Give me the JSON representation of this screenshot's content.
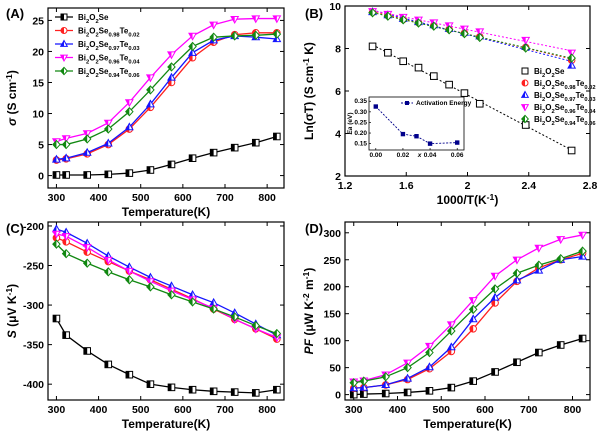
{
  "figure": {
    "colors": {
      "s0": "#000000",
      "s2": "#ff2020",
      "s3": "#1515ff",
      "s4": "#ff00ff",
      "s6": "#118811",
      "inset": "#00008b"
    },
    "legend_labels": [
      {
        "base": "Bi",
        "parts": [
          [
            "Bi",
            "n"
          ],
          [
            "2",
            "sub"
          ],
          [
            "O",
            "n"
          ],
          [
            "2",
            "sub"
          ],
          [
            "Se",
            "n"
          ]
        ]
      },
      {
        "parts": [
          [
            "Bi",
            "n"
          ],
          [
            "2",
            "sub"
          ],
          [
            "O",
            "n"
          ],
          [
            "2",
            "sub"
          ],
          [
            "Se",
            "n"
          ],
          [
            "0.98",
            "sub"
          ],
          [
            "Te",
            "n"
          ],
          [
            "0.02",
            "sub"
          ]
        ]
      },
      {
        "parts": [
          [
            "Bi",
            "n"
          ],
          [
            "2",
            "sub"
          ],
          [
            "O",
            "n"
          ],
          [
            "2",
            "sub"
          ],
          [
            "Se",
            "n"
          ],
          [
            "0.97",
            "sub"
          ],
          [
            "Te",
            "n"
          ],
          [
            "0.03",
            "sub"
          ]
        ]
      },
      {
        "parts": [
          [
            "Bi",
            "n"
          ],
          [
            "2",
            "sub"
          ],
          [
            "O",
            "n"
          ],
          [
            "2",
            "sub"
          ],
          [
            "Se",
            "n"
          ],
          [
            "0.96",
            "sub"
          ],
          [
            "Te",
            "n"
          ],
          [
            "0.04",
            "sub"
          ]
        ]
      },
      {
        "parts": [
          [
            "Bi",
            "n"
          ],
          [
            "2",
            "sub"
          ],
          [
            "O",
            "n"
          ],
          [
            "2",
            "sub"
          ],
          [
            "Se",
            "n"
          ],
          [
            "0.94",
            "sub"
          ],
          [
            "Te",
            "n"
          ],
          [
            "0.06",
            "sub"
          ]
        ]
      }
    ],
    "legend_labels_B": [
      {
        "parts": [
          [
            "Bi",
            "n"
          ],
          [
            "2",
            "sub"
          ],
          [
            "O",
            "n"
          ],
          [
            "2",
            "sub"
          ],
          [
            "Se",
            "n"
          ]
        ]
      },
      {
        "parts": [
          [
            "Bi",
            "n"
          ],
          [
            "2",
            "sub"
          ],
          [
            "O",
            "n"
          ],
          [
            "2",
            "sub"
          ],
          [
            "Se",
            "n"
          ],
          [
            "0.98",
            "sub"
          ],
          [
            "Te",
            "n"
          ],
          [
            "0.02",
            "sub"
          ]
        ]
      },
      {
        "parts": [
          [
            "Bi",
            "n"
          ],
          [
            "2",
            "sub"
          ],
          [
            "O",
            "n"
          ],
          [
            "2",
            "sub"
          ],
          [
            "Se",
            "n"
          ],
          [
            "0.97",
            "sub"
          ],
          [
            "Te",
            "n"
          ],
          [
            "0.03",
            "sub"
          ]
        ]
      },
      {
        "parts": [
          [
            "Bi",
            "n"
          ],
          [
            "2",
            "sub"
          ],
          [
            "O",
            "n"
          ],
          [
            "2",
            "sub"
          ],
          [
            "Se",
            "n"
          ],
          [
            "0.96",
            "sub"
          ],
          [
            "Te",
            "n"
          ],
          [
            "0.04",
            "sub"
          ]
        ]
      },
      {
        "parts": [
          [
            "Bi",
            "n"
          ],
          [
            "2",
            "sub"
          ],
          [
            "O",
            "n"
          ],
          [
            "2",
            "sub"
          ],
          [
            "Se",
            "n"
          ],
          [
            "0.94",
            "sub"
          ],
          [
            "Te",
            "n"
          ],
          [
            "0.06",
            "sub"
          ]
        ]
      }
    ]
  },
  "chart_data": [
    {
      "panel": "(A)",
      "type": "line",
      "xlabel": "Temperature(K)",
      "ylabel_parts": [
        [
          "σ",
          "i"
        ],
        [
          " (S cm",
          "n"
        ],
        [
          "-1",
          "sup"
        ],
        [
          ")",
          "n"
        ]
      ],
      "xlim": [
        280,
        840
      ],
      "ylim": [
        -2,
        27
      ],
      "xticks": [
        300,
        400,
        500,
        600,
        700,
        800
      ],
      "yticks": [
        0,
        5,
        10,
        15,
        20,
        25
      ],
      "legend_position": "top-left",
      "x": [
        300,
        323,
        373,
        423,
        473,
        523,
        573,
        623,
        673,
        723,
        773,
        823
      ],
      "series": [
        {
          "key": "s0",
          "marker": "square",
          "values": [
            0.1,
            0.1,
            0.1,
            0.2,
            0.4,
            0.9,
            1.8,
            2.8,
            3.7,
            4.5,
            5.3,
            6.3
          ]
        },
        {
          "key": "s2",
          "marker": "circle",
          "values": [
            2.5,
            2.7,
            3.5,
            5.0,
            7.5,
            11.0,
            15.0,
            19.0,
            21.5,
            22.7,
            23.0,
            23.0
          ]
        },
        {
          "key": "s3",
          "marker": "triangle-up",
          "values": [
            2.6,
            2.8,
            3.7,
            5.2,
            7.8,
            11.5,
            15.8,
            19.8,
            21.8,
            22.5,
            22.3,
            22.0
          ]
        },
        {
          "key": "s4",
          "marker": "triangle-down",
          "values": [
            5.5,
            6.0,
            6.8,
            8.5,
            11.8,
            15.8,
            19.5,
            22.5,
            24.3,
            25.2,
            25.3,
            25.3
          ]
        },
        {
          "key": "s6",
          "marker": "diamond",
          "values": [
            5.0,
            5.0,
            5.9,
            7.5,
            10.3,
            13.8,
            17.5,
            20.8,
            22.3,
            22.5,
            22.6,
            22.8
          ]
        }
      ]
    },
    {
      "panel": "(B)",
      "type": "scatter",
      "xlabel_parts": [
        [
          "1000/T(K",
          "n"
        ],
        [
          "-1",
          "sup"
        ],
        [
          ")",
          "n"
        ]
      ],
      "ylabel_parts": [
        [
          "Ln(σT) (S cm",
          "n"
        ],
        [
          "-1",
          "sup"
        ],
        [
          " K)",
          "n"
        ]
      ],
      "xlim": [
        1.2,
        2.8
      ],
      "ylim": [
        2,
        10
      ],
      "xticks": [
        1.2,
        1.6,
        2.0,
        2.4,
        2.8
      ],
      "yticks": [
        2,
        4,
        6,
        8,
        10
      ],
      "legend_position": "right",
      "x": [
        1.38,
        1.48,
        1.58,
        1.68,
        1.78,
        1.88,
        1.98,
        2.08,
        2.38,
        2.68
      ],
      "series": [
        {
          "key": "s0",
          "marker": "square-open",
          "values": [
            8.1,
            7.8,
            7.4,
            7.1,
            6.7,
            6.3,
            5.9,
            5.4,
            4.4,
            3.2
          ]
        },
        {
          "key": "s2",
          "marker": "circle",
          "values": [
            9.7,
            9.55,
            9.37,
            9.22,
            9.08,
            8.9,
            8.72,
            8.55,
            8.05,
            7.45
          ]
        },
        {
          "key": "s3",
          "marker": "triangle-up",
          "values": [
            9.72,
            9.57,
            9.4,
            9.25,
            9.1,
            8.93,
            8.75,
            8.58,
            8.08,
            7.2
          ]
        },
        {
          "key": "s4",
          "marker": "triangle-down",
          "values": [
            9.75,
            9.62,
            9.48,
            9.35,
            9.22,
            9.08,
            8.93,
            8.8,
            8.4,
            7.8
          ]
        },
        {
          "key": "s6",
          "marker": "diamond",
          "values": [
            9.68,
            9.52,
            9.35,
            9.2,
            9.05,
            8.88,
            8.7,
            8.52,
            8.02,
            7.55
          ]
        }
      ],
      "inset": {
        "type": "line",
        "legend": "Activation Energy",
        "xlabel": "x",
        "ylabel_parts": [
          [
            "Ea",
            "i"
          ],
          [
            " (eV)",
            "n"
          ]
        ],
        "xlim": [
          -0.005,
          0.065
        ],
        "ylim": [
          0.12,
          0.37
        ],
        "xticks": [
          0.0,
          0.02,
          0.04,
          0.06
        ],
        "xtick_labels": [
          "0.00",
          "0.02",
          "0.04",
          "0.06"
        ],
        "yticks": [
          0.15,
          0.2,
          0.25,
          0.3,
          0.35
        ],
        "ytick_labels": [
          "0.15",
          "0.20",
          "0.25",
          "0.30",
          "0.35"
        ],
        "x": [
          0.0,
          0.02,
          0.03,
          0.04,
          0.06
        ],
        "values": [
          0.325,
          0.195,
          0.185,
          0.15,
          0.155
        ]
      }
    },
    {
      "panel": "(C)",
      "type": "line",
      "xlabel": "Temperature(K)",
      "ylabel_parts": [
        [
          "S",
          "i"
        ],
        [
          " (μV K",
          "n"
        ],
        [
          "-1",
          "sup"
        ],
        [
          ")",
          "n"
        ]
      ],
      "xlim": [
        280,
        840
      ],
      "ylim": [
        -420,
        -195
      ],
      "xticks": [
        300,
        400,
        500,
        600,
        700,
        800
      ],
      "yticks": [
        -400,
        -350,
        -300,
        -250,
        -200
      ],
      "x": [
        300,
        323,
        373,
        423,
        473,
        523,
        573,
        623,
        673,
        723,
        773,
        823
      ],
      "series": [
        {
          "key": "s0",
          "marker": "square",
          "values": [
            -317,
            -338,
            -358,
            -375,
            -388,
            -400,
            -404,
            -407,
            -409,
            -410,
            -411,
            -407
          ]
        },
        {
          "key": "s2",
          "marker": "circle",
          "values": [
            -215,
            -220,
            -233,
            -245,
            -257,
            -268,
            -280,
            -292,
            -305,
            -318,
            -330,
            -343
          ]
        },
        {
          "key": "s3",
          "marker": "triangle-up",
          "values": [
            -204,
            -208,
            -222,
            -238,
            -252,
            -265,
            -276,
            -287,
            -297,
            -310,
            -324,
            -338
          ]
        },
        {
          "key": "s4",
          "marker": "triangle-down",
          "values": [
            -210,
            -213,
            -227,
            -243,
            -257,
            -270,
            -282,
            -293,
            -304,
            -318,
            -330,
            -341
          ]
        },
        {
          "key": "s6",
          "marker": "diamond",
          "values": [
            -223,
            -235,
            -247,
            -258,
            -268,
            -277,
            -287,
            -296,
            -305,
            -315,
            -326,
            -336
          ]
        }
      ]
    },
    {
      "panel": "(D)",
      "type": "line",
      "xlabel": "Temperature(K)",
      "ylabel_parts": [
        [
          "PF",
          "i"
        ],
        [
          " (μW K",
          "n"
        ],
        [
          "-2",
          "sup"
        ],
        [
          " m",
          "n"
        ],
        [
          "-1",
          "sup"
        ],
        [
          ")",
          "n"
        ]
      ],
      "xlim": [
        280,
        840
      ],
      "ylim": [
        -10,
        320
      ],
      "xticks": [
        300,
        400,
        500,
        600,
        700,
        800
      ],
      "yticks": [
        0,
        50,
        100,
        150,
        200,
        250,
        300
      ],
      "x": [
        300,
        323,
        373,
        423,
        473,
        523,
        573,
        623,
        673,
        723,
        773,
        823
      ],
      "series": [
        {
          "key": "s0",
          "marker": "square",
          "values": [
            0,
            1,
            2,
            4,
            7,
            13,
            25,
            42,
            60,
            78,
            92,
            104
          ]
        },
        {
          "key": "s2",
          "marker": "circle",
          "values": [
            12,
            13,
            18,
            28,
            48,
            80,
            122,
            170,
            210,
            235,
            250,
            262
          ]
        },
        {
          "key": "s3",
          "marker": "triangle-up",
          "values": [
            12,
            13,
            18,
            30,
            51,
            88,
            140,
            180,
            212,
            230,
            250,
            256
          ]
        },
        {
          "key": "s4",
          "marker": "triangle-down",
          "values": [
            24,
            26,
            37,
            59,
            90,
            130,
            175,
            220,
            250,
            272,
            288,
            296
          ]
        },
        {
          "key": "s6",
          "marker": "diamond",
          "values": [
            22,
            25,
            33,
            50,
            78,
            118,
            158,
            196,
            225,
            240,
            252,
            266
          ]
        }
      ]
    }
  ]
}
